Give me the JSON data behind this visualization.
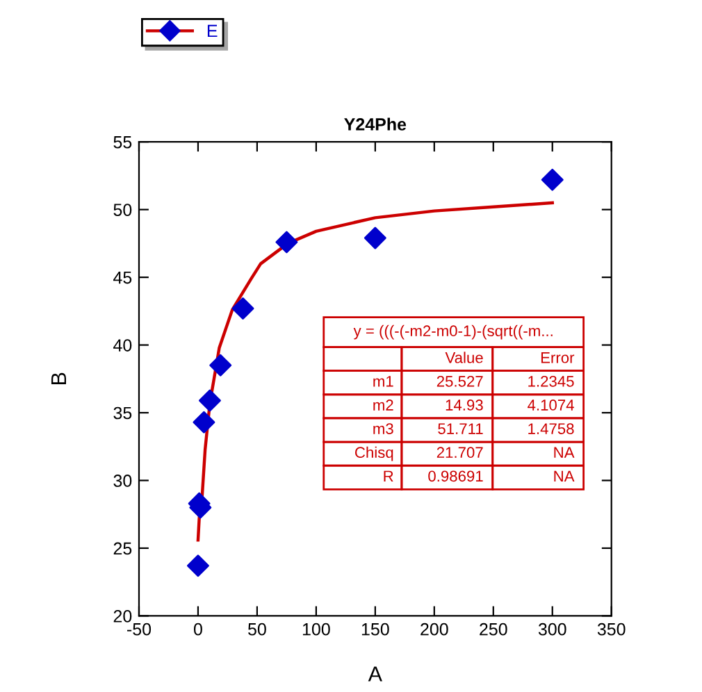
{
  "chart_data": {
    "type": "scatter",
    "title": "Y24Phe",
    "xlabel": "A",
    "ylabel": "B",
    "xlim": [
      -50,
      350
    ],
    "xticks": [
      -50,
      0,
      50,
      100,
      150,
      200,
      250,
      300,
      350
    ],
    "ylim": [
      20,
      55
    ],
    "yticks": [
      20,
      25,
      30,
      35,
      40,
      45,
      50,
      55
    ],
    "grid": false,
    "legend": "top left",
    "series": [
      {
        "name": "E",
        "marker": "diamond",
        "color": "#0000cc",
        "x": [
          0,
          1,
          2,
          5,
          10,
          19,
          38,
          75,
          150,
          300
        ],
        "values": [
          23.7,
          28.3,
          28.0,
          34.3,
          35.9,
          38.5,
          42.7,
          47.6,
          47.9,
          52.2
        ]
      },
      {
        "type": "line",
        "marker": "none",
        "color": "#cc0000",
        "x": [
          0,
          1,
          2,
          3.5,
          6,
          10,
          18,
          29,
          45,
          53,
          76,
          100,
          150,
          200,
          250,
          300
        ],
        "values": [
          25.6,
          27.2,
          28.2,
          28.9,
          32.3,
          35.7,
          39.8,
          42.6,
          44.9,
          46.0,
          47.5,
          48.4,
          49.4,
          49.9,
          50.2,
          50.5
        ]
      }
    ],
    "annotations": [
      "y = (((-(-m2-m0-1)-(sqrt((-m...",
      "Value",
      "Error",
      "m1",
      "25.527",
      "1.2345",
      "m2",
      "14.93",
      "4.1074",
      "m3",
      "51.711",
      "1.4758",
      "Chisq",
      "21.707",
      "NA",
      "R",
      "0.98691",
      "NA"
    ]
  }
}
